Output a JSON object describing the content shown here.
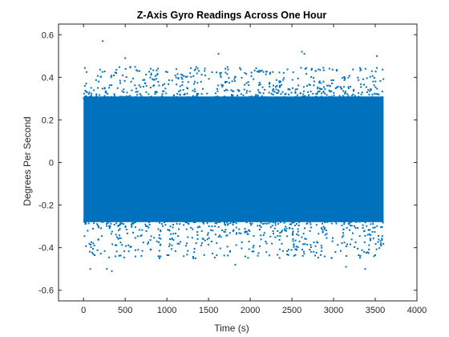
{
  "chart_data": {
    "type": "scatter",
    "title": "Z-Axis Gyro Readings Across One Hour",
    "xlabel": "Time (s)",
    "ylabel": "Degrees Per Second",
    "xlim": [
      -300,
      4000
    ],
    "ylim": [
      -0.65,
      0.65
    ],
    "xticks": [
      0,
      500,
      1000,
      1500,
      2000,
      2500,
      3000,
      3500,
      4000
    ],
    "xtick_labels": [
      "0",
      "500",
      "1000",
      "1500",
      "2000",
      "2500",
      "3000",
      "3500",
      "4000"
    ],
    "yticks": [
      -0.6,
      -0.4,
      -0.2,
      0,
      0.2,
      0.4,
      0.6
    ],
    "ytick_labels": [
      "-0.6",
      "-0.4",
      "-0.2",
      "0",
      "0.2",
      "0.4",
      "0.6"
    ],
    "grid": false,
    "box": true,
    "marker_color": "#0072BD",
    "series": [
      {
        "x_start": 0,
        "x_end": 3600,
        "dense_band": [
          -0.3,
          0.33
        ],
        "observed_max": 0.57,
        "observed_min": -0.51,
        "outliers": [
          {
            "x": 230,
            "y": 0.57
          },
          {
            "x": 2620,
            "y": 0.52
          },
          {
            "x": 2650,
            "y": 0.51
          },
          {
            "x": 1620,
            "y": 0.51
          },
          {
            "x": 500,
            "y": 0.49
          },
          {
            "x": 3520,
            "y": 0.5
          },
          {
            "x": 80,
            "y": -0.5
          },
          {
            "x": 280,
            "y": -0.5
          },
          {
            "x": 340,
            "y": -0.51
          },
          {
            "x": 3380,
            "y": -0.5
          },
          {
            "x": 3150,
            "y": -0.49
          },
          {
            "x": 1820,
            "y": -0.48
          }
        ]
      }
    ]
  },
  "colors": {
    "marker": "#0072BD",
    "axis": "#262626",
    "background": "#ffffff"
  }
}
